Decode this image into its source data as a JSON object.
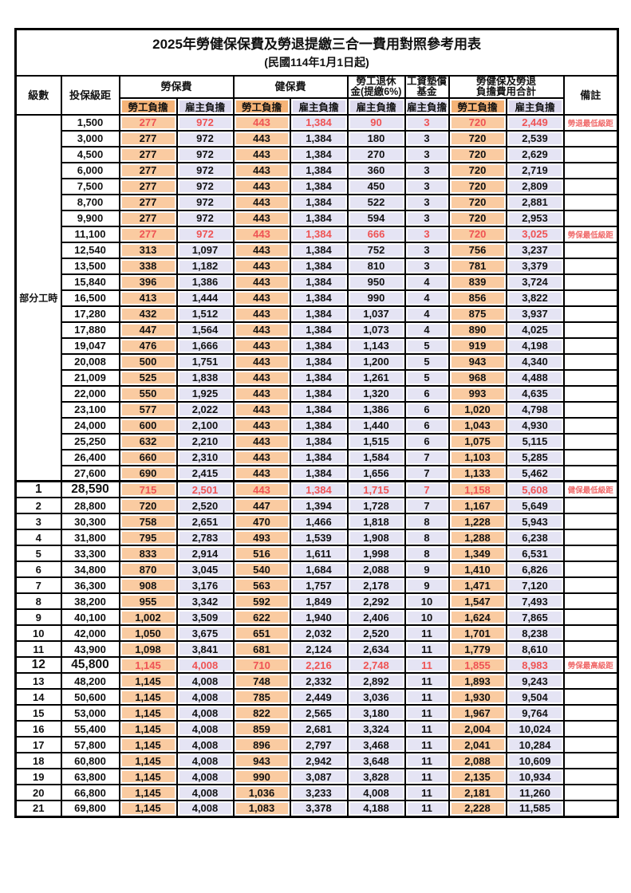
{
  "title": "2025年勞健保保費及勞退提繳三合一費用對照參考用表",
  "subtitle": "(民國114年1月1日起)",
  "headers": {
    "level": "級數",
    "bracket": "投保級距",
    "labor": "勞保費",
    "health": "健保費",
    "pension_line1": "勞工退休",
    "pension_line2": "金(提繳6%)",
    "fund_line1": "工資墊償",
    "fund_line2": "基金",
    "total_line1": "勞健保及勞退",
    "total_line2": "負擔費用合計",
    "remark": "備註",
    "employee": "勞工負擔",
    "employer": "雇主負擔"
  },
  "colors": {
    "employee_header_bg": "#F5B377",
    "employer_header_bg": "#DDDAEE",
    "employee_cell_bg": "#FACBA1",
    "employer_cell_bg": "#E5E4F4",
    "highlight_text": "#EF5354",
    "remark_text": "#F06A6A",
    "grid": "#000000"
  },
  "rows": [
    {
      "level": "部分工時",
      "level_rowspan": 23,
      "bracket": "1,500",
      "labor_emp": "277",
      "labor_er": "972",
      "health_emp": "443",
      "health_er": "1,384",
      "pension_er": "90",
      "fund_er": "3",
      "total_emp": "720",
      "total_er": "2,449",
      "remark": "勞退最低級距",
      "red": true,
      "big": false
    },
    {
      "level": null,
      "bracket": "3,000",
      "labor_emp": "277",
      "labor_er": "972",
      "health_emp": "443",
      "health_er": "1,384",
      "pension_er": "180",
      "fund_er": "3",
      "total_emp": "720",
      "total_er": "2,539",
      "remark": "",
      "red": false,
      "big": false
    },
    {
      "level": null,
      "bracket": "4,500",
      "labor_emp": "277",
      "labor_er": "972",
      "health_emp": "443",
      "health_er": "1,384",
      "pension_er": "270",
      "fund_er": "3",
      "total_emp": "720",
      "total_er": "2,629",
      "remark": "",
      "red": false,
      "big": false
    },
    {
      "level": null,
      "bracket": "6,000",
      "labor_emp": "277",
      "labor_er": "972",
      "health_emp": "443",
      "health_er": "1,384",
      "pension_er": "360",
      "fund_er": "3",
      "total_emp": "720",
      "total_er": "2,719",
      "remark": "",
      "red": false,
      "big": false
    },
    {
      "level": null,
      "bracket": "7,500",
      "labor_emp": "277",
      "labor_er": "972",
      "health_emp": "443",
      "health_er": "1,384",
      "pension_er": "450",
      "fund_er": "3",
      "total_emp": "720",
      "total_er": "2,809",
      "remark": "",
      "red": false,
      "big": false
    },
    {
      "level": null,
      "bracket": "8,700",
      "labor_emp": "277",
      "labor_er": "972",
      "health_emp": "443",
      "health_er": "1,384",
      "pension_er": "522",
      "fund_er": "3",
      "total_emp": "720",
      "total_er": "2,881",
      "remark": "",
      "red": false,
      "big": false
    },
    {
      "level": null,
      "bracket": "9,900",
      "labor_emp": "277",
      "labor_er": "972",
      "health_emp": "443",
      "health_er": "1,384",
      "pension_er": "594",
      "fund_er": "3",
      "total_emp": "720",
      "total_er": "2,953",
      "remark": "",
      "red": false,
      "big": false
    },
    {
      "level": null,
      "bracket": "11,100",
      "labor_emp": "277",
      "labor_er": "972",
      "health_emp": "443",
      "health_er": "1,384",
      "pension_er": "666",
      "fund_er": "3",
      "total_emp": "720",
      "total_er": "3,025",
      "remark": "勞保最低級距",
      "red": true,
      "big": false
    },
    {
      "level": null,
      "bracket": "12,540",
      "labor_emp": "313",
      "labor_er": "1,097",
      "health_emp": "443",
      "health_er": "1,384",
      "pension_er": "752",
      "fund_er": "3",
      "total_emp": "756",
      "total_er": "3,237",
      "remark": "",
      "red": false,
      "big": false
    },
    {
      "level": null,
      "bracket": "13,500",
      "labor_emp": "338",
      "labor_er": "1,182",
      "health_emp": "443",
      "health_er": "1,384",
      "pension_er": "810",
      "fund_er": "3",
      "total_emp": "781",
      "total_er": "3,379",
      "remark": "",
      "red": false,
      "big": false
    },
    {
      "level": null,
      "bracket": "15,840",
      "labor_emp": "396",
      "labor_er": "1,386",
      "health_emp": "443",
      "health_er": "1,384",
      "pension_er": "950",
      "fund_er": "4",
      "total_emp": "839",
      "total_er": "3,724",
      "remark": "",
      "red": false,
      "big": false
    },
    {
      "level": null,
      "bracket": "16,500",
      "labor_emp": "413",
      "labor_er": "1,444",
      "health_emp": "443",
      "health_er": "1,384",
      "pension_er": "990",
      "fund_er": "4",
      "total_emp": "856",
      "total_er": "3,822",
      "remark": "",
      "red": false,
      "big": false
    },
    {
      "level": null,
      "bracket": "17,280",
      "labor_emp": "432",
      "labor_er": "1,512",
      "health_emp": "443",
      "health_er": "1,384",
      "pension_er": "1,037",
      "fund_er": "4",
      "total_emp": "875",
      "total_er": "3,937",
      "remark": "",
      "red": false,
      "big": false
    },
    {
      "level": null,
      "bracket": "17,880",
      "labor_emp": "447",
      "labor_er": "1,564",
      "health_emp": "443",
      "health_er": "1,384",
      "pension_er": "1,073",
      "fund_er": "4",
      "total_emp": "890",
      "total_er": "4,025",
      "remark": "",
      "red": false,
      "big": false
    },
    {
      "level": null,
      "bracket": "19,047",
      "labor_emp": "476",
      "labor_er": "1,666",
      "health_emp": "443",
      "health_er": "1,384",
      "pension_er": "1,143",
      "fund_er": "5",
      "total_emp": "919",
      "total_er": "4,198",
      "remark": "",
      "red": false,
      "big": false
    },
    {
      "level": null,
      "bracket": "20,008",
      "labor_emp": "500",
      "labor_er": "1,751",
      "health_emp": "443",
      "health_er": "1,384",
      "pension_er": "1,200",
      "fund_er": "5",
      "total_emp": "943",
      "total_er": "4,340",
      "remark": "",
      "red": false,
      "big": false
    },
    {
      "level": null,
      "bracket": "21,009",
      "labor_emp": "525",
      "labor_er": "1,838",
      "health_emp": "443",
      "health_er": "1,384",
      "pension_er": "1,261",
      "fund_er": "5",
      "total_emp": "968",
      "total_er": "4,488",
      "remark": "",
      "red": false,
      "big": false
    },
    {
      "level": null,
      "bracket": "22,000",
      "labor_emp": "550",
      "labor_er": "1,925",
      "health_emp": "443",
      "health_er": "1,384",
      "pension_er": "1,320",
      "fund_er": "6",
      "total_emp": "993",
      "total_er": "4,635",
      "remark": "",
      "red": false,
      "big": false
    },
    {
      "level": null,
      "bracket": "23,100",
      "labor_emp": "577",
      "labor_er": "2,022",
      "health_emp": "443",
      "health_er": "1,384",
      "pension_er": "1,386",
      "fund_er": "6",
      "total_emp": "1,020",
      "total_er": "4,798",
      "remark": "",
      "red": false,
      "big": false
    },
    {
      "level": null,
      "bracket": "24,000",
      "labor_emp": "600",
      "labor_er": "2,100",
      "health_emp": "443",
      "health_er": "1,384",
      "pension_er": "1,440",
      "fund_er": "6",
      "total_emp": "1,043",
      "total_er": "4,930",
      "remark": "",
      "red": false,
      "big": false
    },
    {
      "level": null,
      "bracket": "25,250",
      "labor_emp": "632",
      "labor_er": "2,210",
      "health_emp": "443",
      "health_er": "1,384",
      "pension_er": "1,515",
      "fund_er": "6",
      "total_emp": "1,075",
      "total_er": "5,115",
      "remark": "",
      "red": false,
      "big": false
    },
    {
      "level": null,
      "bracket": "26,400",
      "labor_emp": "660",
      "labor_er": "2,310",
      "health_emp": "443",
      "health_er": "1,384",
      "pension_er": "1,584",
      "fund_er": "7",
      "total_emp": "1,103",
      "total_er": "5,285",
      "remark": "",
      "red": false,
      "big": false
    },
    {
      "level": null,
      "bracket": "27,600",
      "labor_emp": "690",
      "labor_er": "2,415",
      "health_emp": "443",
      "health_er": "1,384",
      "pension_er": "1,656",
      "fund_er": "7",
      "total_emp": "1,133",
      "total_er": "5,462",
      "remark": "",
      "red": false,
      "big": false
    },
    {
      "level": "1",
      "bracket": "28,590",
      "labor_emp": "715",
      "labor_er": "2,501",
      "health_emp": "443",
      "health_er": "1,384",
      "pension_er": "1,715",
      "fund_er": "7",
      "total_emp": "1,158",
      "total_er": "5,608",
      "remark": "健保最低級距",
      "red": true,
      "big": true,
      "section_start": true
    },
    {
      "level": "2",
      "bracket": "28,800",
      "labor_emp": "720",
      "labor_er": "2,520",
      "health_emp": "447",
      "health_er": "1,394",
      "pension_er": "1,728",
      "fund_er": "7",
      "total_emp": "1,167",
      "total_er": "5,649",
      "remark": "",
      "red": false,
      "big": false
    },
    {
      "level": "3",
      "bracket": "30,300",
      "labor_emp": "758",
      "labor_er": "2,651",
      "health_emp": "470",
      "health_er": "1,466",
      "pension_er": "1,818",
      "fund_er": "8",
      "total_emp": "1,228",
      "total_er": "5,943",
      "remark": "",
      "red": false,
      "big": false
    },
    {
      "level": "4",
      "bracket": "31,800",
      "labor_emp": "795",
      "labor_er": "2,783",
      "health_emp": "493",
      "health_er": "1,539",
      "pension_er": "1,908",
      "fund_er": "8",
      "total_emp": "1,288",
      "total_er": "6,238",
      "remark": "",
      "red": false,
      "big": false
    },
    {
      "level": "5",
      "bracket": "33,300",
      "labor_emp": "833",
      "labor_er": "2,914",
      "health_emp": "516",
      "health_er": "1,611",
      "pension_er": "1,998",
      "fund_er": "8",
      "total_emp": "1,349",
      "total_er": "6,531",
      "remark": "",
      "red": false,
      "big": false
    },
    {
      "level": "6",
      "bracket": "34,800",
      "labor_emp": "870",
      "labor_er": "3,045",
      "health_emp": "540",
      "health_er": "1,684",
      "pension_er": "2,088",
      "fund_er": "9",
      "total_emp": "1,410",
      "total_er": "6,826",
      "remark": "",
      "red": false,
      "big": false
    },
    {
      "level": "7",
      "bracket": "36,300",
      "labor_emp": "908",
      "labor_er": "3,176",
      "health_emp": "563",
      "health_er": "1,757",
      "pension_er": "2,178",
      "fund_er": "9",
      "total_emp": "1,471",
      "total_er": "7,120",
      "remark": "",
      "red": false,
      "big": false
    },
    {
      "level": "8",
      "bracket": "38,200",
      "labor_emp": "955",
      "labor_er": "3,342",
      "health_emp": "592",
      "health_er": "1,849",
      "pension_er": "2,292",
      "fund_er": "10",
      "total_emp": "1,547",
      "total_er": "7,493",
      "remark": "",
      "red": false,
      "big": false
    },
    {
      "level": "9",
      "bracket": "40,100",
      "labor_emp": "1,002",
      "labor_er": "3,509",
      "health_emp": "622",
      "health_er": "1,940",
      "pension_er": "2,406",
      "fund_er": "10",
      "total_emp": "1,624",
      "total_er": "7,865",
      "remark": "",
      "red": false,
      "big": false
    },
    {
      "level": "10",
      "bracket": "42,000",
      "labor_emp": "1,050",
      "labor_er": "3,675",
      "health_emp": "651",
      "health_er": "2,032",
      "pension_er": "2,520",
      "fund_er": "11",
      "total_emp": "1,701",
      "total_er": "8,238",
      "remark": "",
      "red": false,
      "big": false
    },
    {
      "level": "11",
      "bracket": "43,900",
      "labor_emp": "1,098",
      "labor_er": "3,841",
      "health_emp": "681",
      "health_er": "2,124",
      "pension_er": "2,634",
      "fund_er": "11",
      "total_emp": "1,779",
      "total_er": "8,610",
      "remark": "",
      "red": false,
      "big": false
    },
    {
      "level": "12",
      "bracket": "45,800",
      "labor_emp": "1,145",
      "labor_er": "4,008",
      "health_emp": "710",
      "health_er": "2,216",
      "pension_er": "2,748",
      "fund_er": "11",
      "total_emp": "1,855",
      "total_er": "8,983",
      "remark": "勞保最高級距",
      "red": true,
      "big": true
    },
    {
      "level": "13",
      "bracket": "48,200",
      "labor_emp": "1,145",
      "labor_er": "4,008",
      "health_emp": "748",
      "health_er": "2,332",
      "pension_er": "2,892",
      "fund_er": "11",
      "total_emp": "1,893",
      "total_er": "9,243",
      "remark": "",
      "red": false,
      "big": false
    },
    {
      "level": "14",
      "bracket": "50,600",
      "labor_emp": "1,145",
      "labor_er": "4,008",
      "health_emp": "785",
      "health_er": "2,449",
      "pension_er": "3,036",
      "fund_er": "11",
      "total_emp": "1,930",
      "total_er": "9,504",
      "remark": "",
      "red": false,
      "big": false
    },
    {
      "level": "15",
      "bracket": "53,000",
      "labor_emp": "1,145",
      "labor_er": "4,008",
      "health_emp": "822",
      "health_er": "2,565",
      "pension_er": "3,180",
      "fund_er": "11",
      "total_emp": "1,967",
      "total_er": "9,764",
      "remark": "",
      "red": false,
      "big": false
    },
    {
      "level": "16",
      "bracket": "55,400",
      "labor_emp": "1,145",
      "labor_er": "4,008",
      "health_emp": "859",
      "health_er": "2,681",
      "pension_er": "3,324",
      "fund_er": "11",
      "total_emp": "2,004",
      "total_er": "10,024",
      "remark": "",
      "red": false,
      "big": false
    },
    {
      "level": "17",
      "bracket": "57,800",
      "labor_emp": "1,145",
      "labor_er": "4,008",
      "health_emp": "896",
      "health_er": "2,797",
      "pension_er": "3,468",
      "fund_er": "11",
      "total_emp": "2,041",
      "total_er": "10,284",
      "remark": "",
      "red": false,
      "big": false
    },
    {
      "level": "18",
      "bracket": "60,800",
      "labor_emp": "1,145",
      "labor_er": "4,008",
      "health_emp": "943",
      "health_er": "2,942",
      "pension_er": "3,648",
      "fund_er": "11",
      "total_emp": "2,088",
      "total_er": "10,609",
      "remark": "",
      "red": false,
      "big": false
    },
    {
      "level": "19",
      "bracket": "63,800",
      "labor_emp": "1,145",
      "labor_er": "4,008",
      "health_emp": "990",
      "health_er": "3,087",
      "pension_er": "3,828",
      "fund_er": "11",
      "total_emp": "2,135",
      "total_er": "10,934",
      "remark": "",
      "red": false,
      "big": false
    },
    {
      "level": "20",
      "bracket": "66,800",
      "labor_emp": "1,145",
      "labor_er": "4,008",
      "health_emp": "1,036",
      "health_er": "3,233",
      "pension_er": "4,008",
      "fund_er": "11",
      "total_emp": "2,181",
      "total_er": "11,260",
      "remark": "",
      "red": false,
      "big": false
    },
    {
      "level": "21",
      "bracket": "69,800",
      "labor_emp": "1,145",
      "labor_er": "4,008",
      "health_emp": "1,083",
      "health_er": "3,378",
      "pension_er": "4,188",
      "fund_er": "11",
      "total_emp": "2,228",
      "total_er": "11,585",
      "remark": "",
      "red": false,
      "big": false
    }
  ]
}
